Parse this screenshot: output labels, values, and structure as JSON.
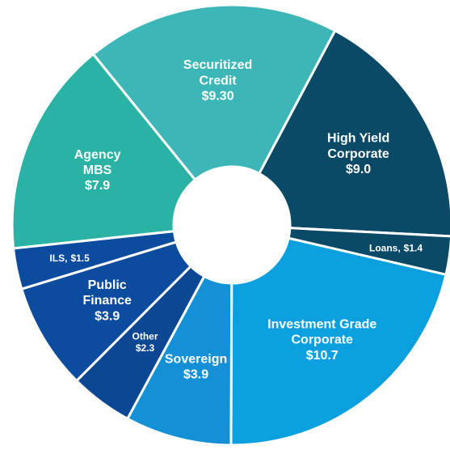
{
  "chart_data": {
    "type": "donut",
    "categories": [
      [
        "High Yield",
        "Corporate"
      ],
      [
        "Loans,"
      ],
      [
        "Investment Grade",
        "Corporate"
      ],
      [
        "Sovereign"
      ],
      [
        "Other"
      ],
      [
        "Public",
        "Finance"
      ],
      [
        "ILS,"
      ],
      [
        "Agency",
        "MBS"
      ],
      [
        "Securitized",
        "Credit"
      ]
    ],
    "values": [
      9.0,
      1.4,
      10.7,
      3.9,
      2.3,
      3.9,
      1.5,
      7.9,
      9.3
    ],
    "value_labels": [
      "$9.0",
      "$1.4",
      "$10.7",
      "$3.9",
      "$2.3",
      "$3.9",
      "$1.5",
      "$7.9",
      "$9.30"
    ],
    "colors": [
      "#0b4a66",
      "#0b4a66",
      "#0aa0df",
      "#1490d6",
      "#0b4792",
      "#0c4c9e",
      "#0c4c9e",
      "#2ab3a4",
      "#3cb6b6"
    ]
  }
}
